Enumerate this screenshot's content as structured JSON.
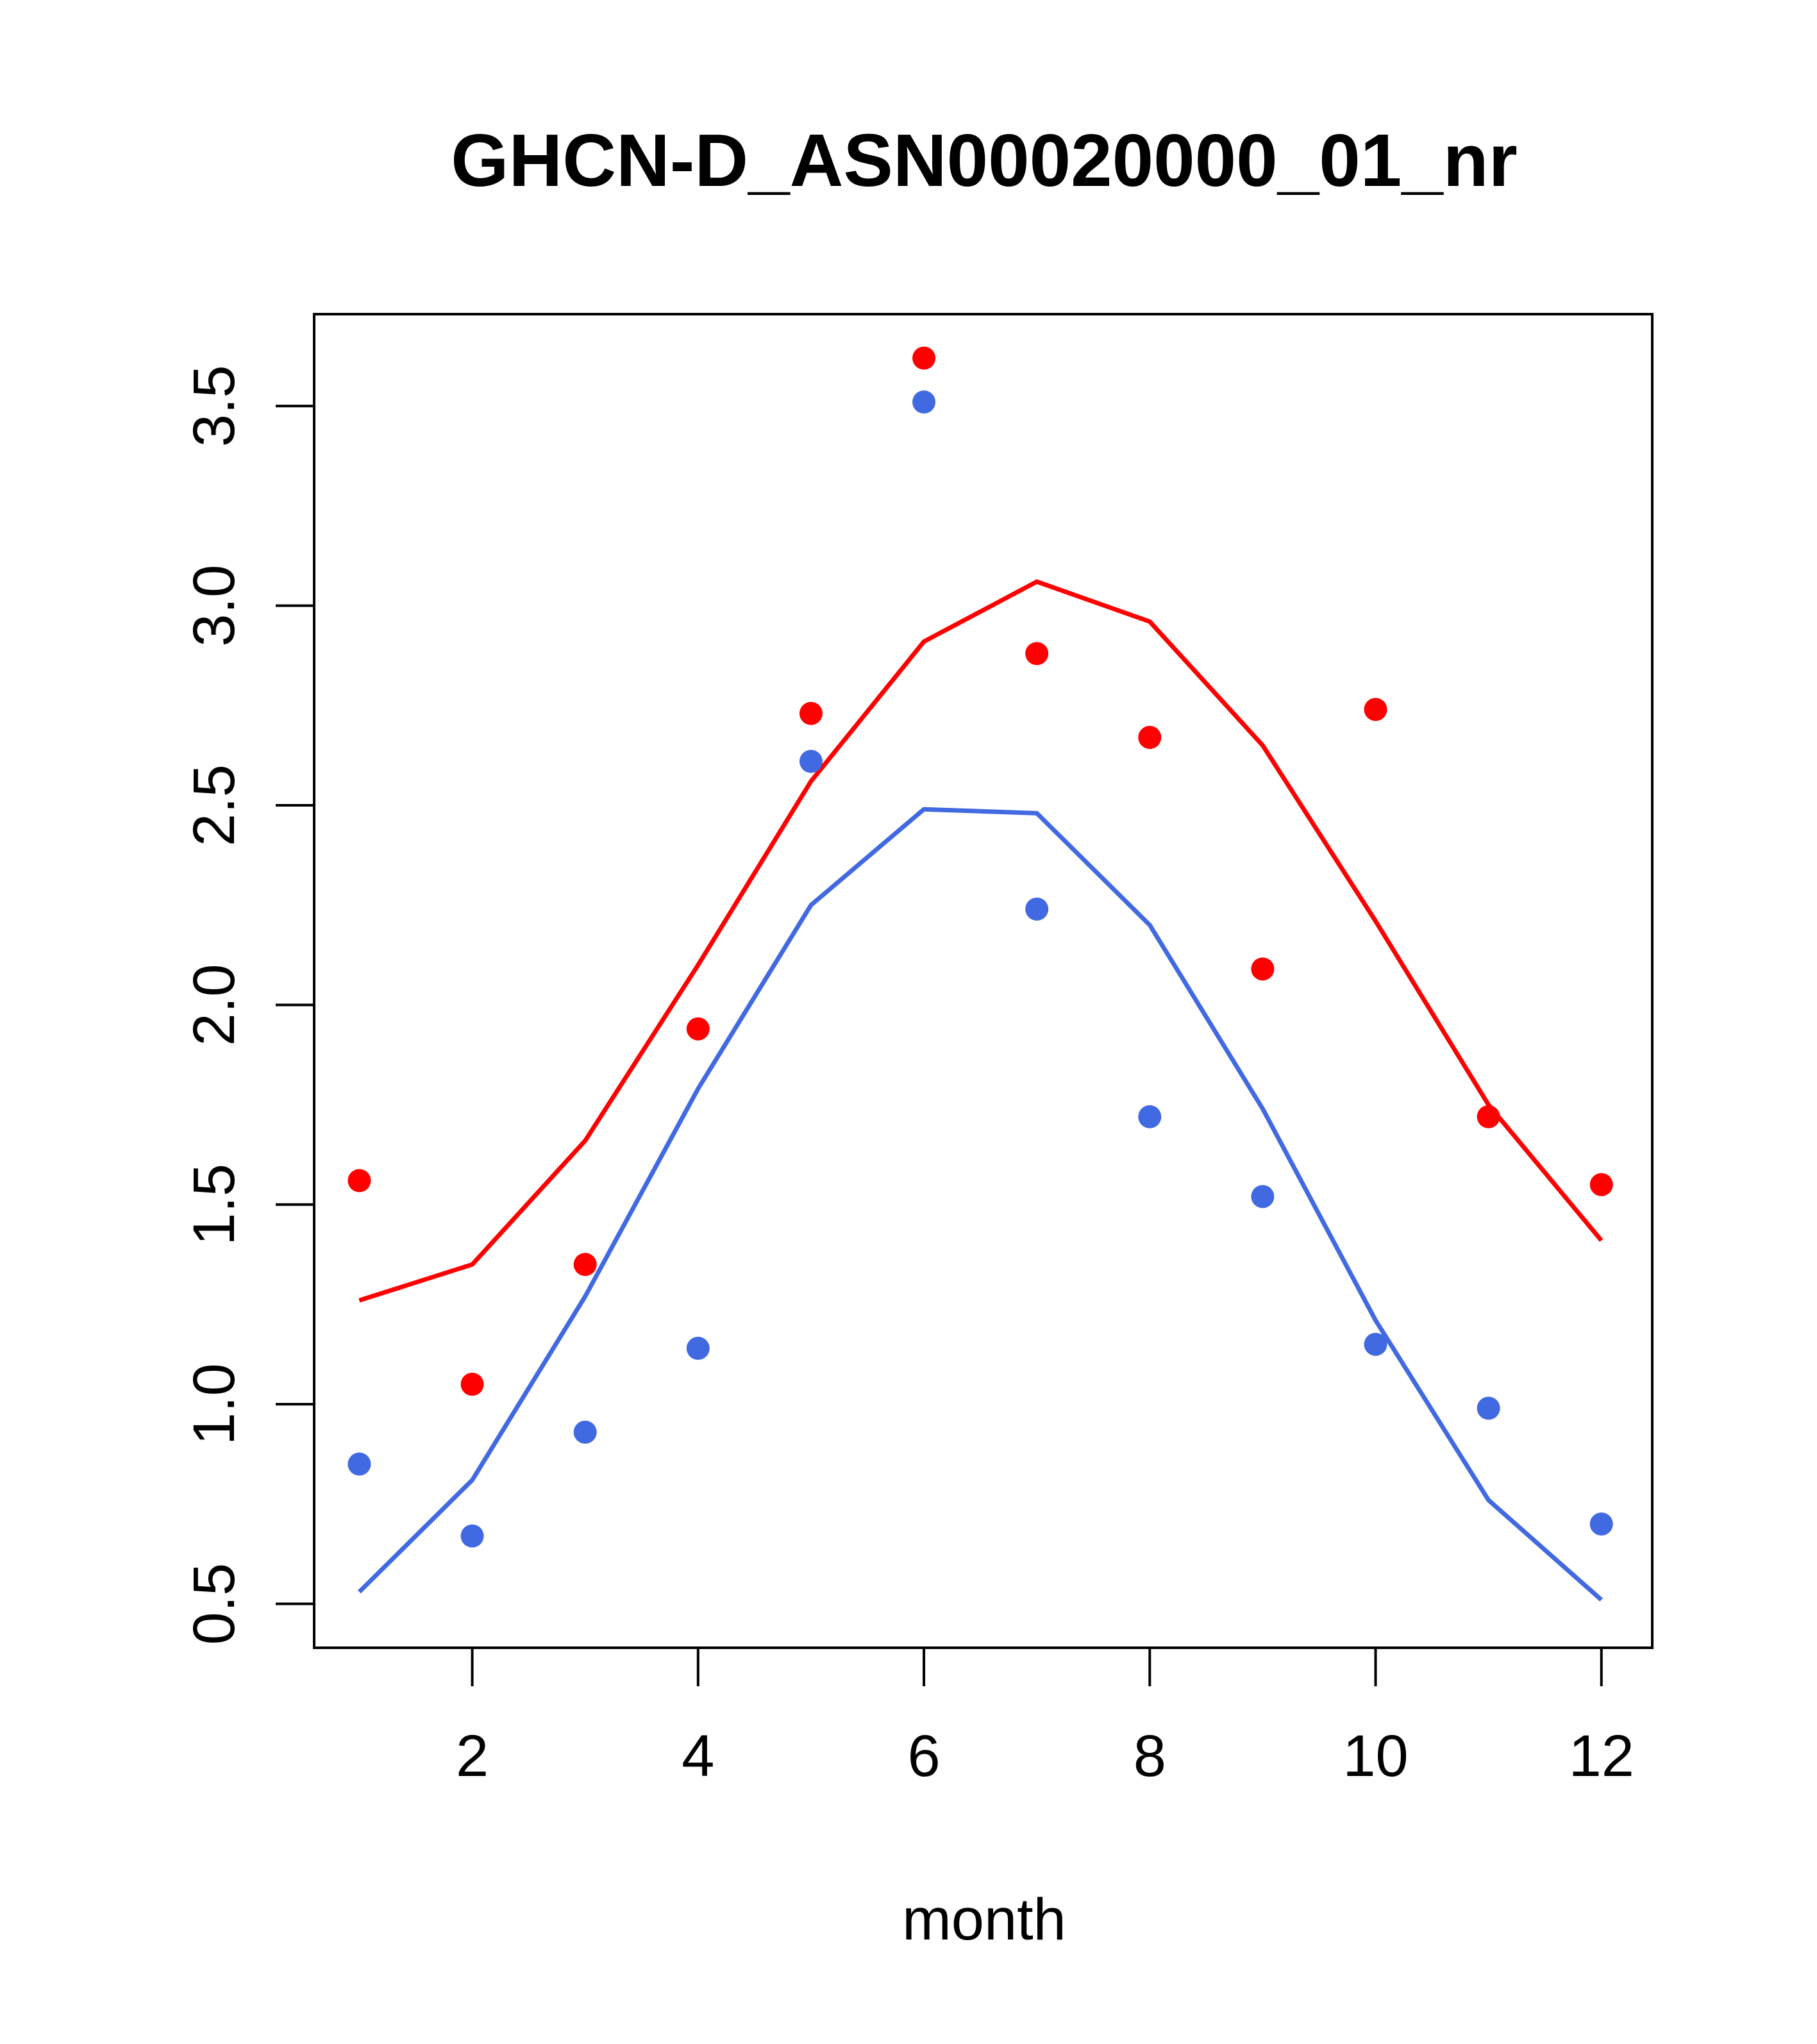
{
  "chart_data": {
    "type": "scatter",
    "title": "GHCN-D_ASN00020000_01_nr",
    "xlabel": "month",
    "ylabel": "",
    "xlim": [
      0.6,
      12.45
    ],
    "ylim": [
      0.39,
      3.73
    ],
    "xticks": [
      2,
      4,
      6,
      8,
      10,
      12
    ],
    "yticks": [
      "0.5",
      "1.0",
      "1.5",
      "2.0",
      "2.5",
      "3.0",
      "3.5"
    ],
    "grid": false,
    "legend": "none",
    "series": [
      {
        "color": "#FF0000",
        "points": {
          "x": [
            1,
            2,
            3,
            4,
            5,
            6,
            7,
            8,
            9,
            10,
            11,
            12
          ],
          "y": [
            1.56,
            1.05,
            1.35,
            1.94,
            2.73,
            3.62,
            2.88,
            2.67,
            2.09,
            2.74,
            1.72,
            1.55
          ]
        },
        "line": {
          "x": [
            1,
            2,
            3,
            4,
            5,
            6,
            7,
            8,
            9,
            10,
            11,
            12
          ],
          "y": [
            1.26,
            1.35,
            1.66,
            2.1,
            2.56,
            2.91,
            3.06,
            2.96,
            2.65,
            2.21,
            1.75,
            1.41
          ]
        }
      },
      {
        "color": "#4169E1",
        "points": {
          "x": [
            1,
            2,
            3,
            4,
            5,
            6,
            7,
            8,
            9,
            10,
            11,
            12
          ],
          "y": [
            0.85,
            0.67,
            0.93,
            1.14,
            2.61,
            3.51,
            2.24,
            1.72,
            1.52,
            1.15,
            0.99,
            0.7
          ]
        },
        "line": {
          "x": [
            1,
            2,
            3,
            4,
            5,
            6,
            7,
            8,
            9,
            10,
            11,
            12
          ],
          "y": [
            0.53,
            0.81,
            1.27,
            1.79,
            2.25,
            2.49,
            2.48,
            2.2,
            1.74,
            1.21,
            0.76,
            0.51
          ]
        }
      }
    ]
  }
}
